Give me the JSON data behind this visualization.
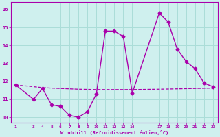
{
  "xlabel": "Windchill (Refroidissement éolien,°C)",
  "background_color": "#cff0ee",
  "line_color": "#aa00aa",
  "xlim": [
    0.5,
    23.5
  ],
  "ylim": [
    9.7,
    16.4
  ],
  "yticks": [
    10,
    11,
    12,
    13,
    14,
    15,
    16
  ],
  "xtick_positions": [
    1,
    3,
    4,
    5,
    6,
    7,
    8,
    9,
    10,
    11,
    12,
    13,
    14,
    17,
    18,
    19,
    20,
    21,
    22,
    23
  ],
  "xtick_labels": [
    "1",
    "3",
    "4",
    "5",
    "6",
    "7",
    "8",
    "9",
    "10",
    "11",
    "12",
    "13",
    "14",
    "17",
    "18",
    "19",
    "20",
    "21",
    "22",
    "23"
  ],
  "series1_x": [
    1,
    3,
    4,
    5,
    6,
    7,
    8,
    9,
    10,
    11,
    12,
    13,
    14,
    17,
    18,
    19,
    20,
    21,
    22,
    23
  ],
  "series1_y": [
    11.8,
    11.0,
    11.6,
    10.7,
    10.6,
    10.1,
    10.0,
    10.3,
    11.3,
    14.8,
    14.8,
    14.5,
    11.35,
    15.8,
    15.3,
    13.8,
    13.1,
    12.7,
    11.9,
    11.7
  ],
  "series2_x": [
    1,
    3,
    4,
    5,
    6,
    7,
    8,
    9,
    10,
    11,
    12,
    13,
    14,
    17,
    18,
    19,
    20,
    21,
    22,
    23
  ],
  "series2_y": [
    11.8,
    11.7,
    11.65,
    11.62,
    11.6,
    11.58,
    11.56,
    11.55,
    11.54,
    11.54,
    11.54,
    11.54,
    11.54,
    11.56,
    11.57,
    11.58,
    11.59,
    11.6,
    11.61,
    11.62
  ],
  "grid_color": "#aaddd8",
  "marker": "D",
  "markersize": 2.5,
  "linewidth": 1.0,
  "dashed_linewidth": 0.9
}
